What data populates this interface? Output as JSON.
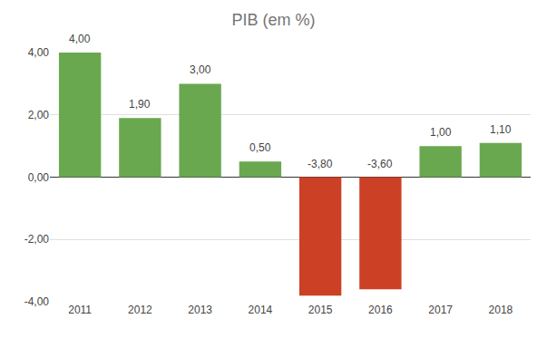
{
  "chart_data": {
    "type": "bar",
    "title": "PIB (em %)",
    "categories": [
      "2011",
      "2012",
      "2013",
      "2014",
      "2015",
      "2016",
      "2017",
      "2018"
    ],
    "values": [
      4.0,
      1.9,
      3.0,
      0.5,
      -3.8,
      -3.6,
      1.0,
      1.1
    ],
    "value_labels": [
      "4,00",
      "1,90",
      "3,00",
      "0,50",
      "-3,80",
      "-3,60",
      "1,00",
      "1,10"
    ],
    "colors": [
      "#6aa84f",
      "#6aa84f",
      "#6aa84f",
      "#6aa84f",
      "#cc4125",
      "#cc4125",
      "#6aa84f",
      "#6aa84f"
    ],
    "ylim": [
      -4,
      4
    ],
    "yticks": [
      {
        "value": -4,
        "label": "-4,00"
      },
      {
        "value": -2,
        "label": "-2,00"
      },
      {
        "value": 0,
        "label": "0,00"
      },
      {
        "value": 2,
        "label": "2,00"
      },
      {
        "value": 4,
        "label": "4,00"
      }
    ],
    "grid": true,
    "data_labels": true
  }
}
